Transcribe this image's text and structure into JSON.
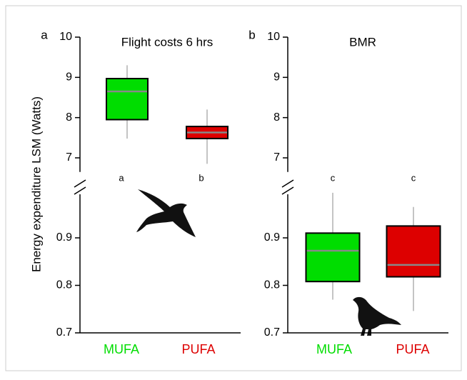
{
  "chart_data": [
    {
      "type": "box",
      "panel_label": "a",
      "title": "Flight costs 6 hrs",
      "ylabel": "Energy expenditure LSM (Watts)",
      "categories": [
        "MUFA",
        "PUFA"
      ],
      "boxes": [
        {
          "color": "#00dd00",
          "whislo": 7.48,
          "q1": 7.95,
          "median": 8.65,
          "q3": 8.97,
          "whishi": 9.3
        },
        {
          "color": "#dd0000",
          "whislo": 6.85,
          "q1": 7.48,
          "median": 7.63,
          "q3": 7.78,
          "whishi": 8.2
        }
      ],
      "annotations": [
        "a",
        "b"
      ],
      "data_segment": 0,
      "segments": [
        {
          "ylim": [
            6.65,
            10
          ],
          "yticks": [
            7,
            8,
            9,
            10
          ]
        },
        {
          "ylim": [
            0.7,
            1.0
          ],
          "yticks": [
            0.7,
            0.8,
            0.9
          ]
        }
      ]
    },
    {
      "type": "box",
      "panel_label": "b",
      "title": "BMR",
      "categories": [
        "MUFA",
        "PUFA"
      ],
      "boxes": [
        {
          "color": "#00dd00",
          "whislo": 0.77,
          "q1": 0.808,
          "median": 0.873,
          "q3": 0.91,
          "whishi": 0.995
        },
        {
          "color": "#dd0000",
          "whislo": 0.746,
          "q1": 0.818,
          "median": 0.843,
          "q3": 0.925,
          "whishi": 0.965
        }
      ],
      "annotations": [
        "c",
        "c"
      ],
      "data_segment": 1,
      "segments": [
        {
          "ylim": [
            6.65,
            10
          ],
          "yticks": [
            7,
            8,
            9,
            10
          ]
        },
        {
          "ylim": [
            0.7,
            1.0
          ],
          "yticks": [
            0.7,
            0.8,
            0.9
          ]
        }
      ]
    }
  ]
}
